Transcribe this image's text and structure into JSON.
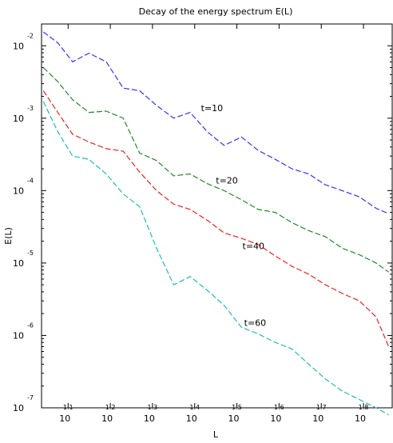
{
  "chart_data": {
    "type": "line",
    "title": "Decay of the energy spectrum E(L)",
    "xlabel": "L",
    "ylabel": "E(L)",
    "xscale": "log",
    "yscale": "log",
    "xlim": [
      10.89,
      74.13
    ],
    "ylim": [
      1e-07,
      0.02
    ],
    "grid": false,
    "legend": "none",
    "x_ticks": [
      {
        "base": "10",
        "exp": "1.1",
        "value": 12.59
      },
      {
        "base": "10",
        "exp": "1.2",
        "value": 15.85
      },
      {
        "base": "10",
        "exp": "1.3",
        "value": 19.95
      },
      {
        "base": "10",
        "exp": "1.4",
        "value": 25.12
      },
      {
        "base": "10",
        "exp": "1.5",
        "value": 31.62
      },
      {
        "base": "10",
        "exp": "1.6",
        "value": 39.81
      },
      {
        "base": "10",
        "exp": "1.7",
        "value": 50.12
      },
      {
        "base": "10",
        "exp": "1.8",
        "value": 63.1
      }
    ],
    "y_ticks": [
      {
        "base": "10",
        "exp": "-2",
        "value": 0.01
      },
      {
        "base": "10",
        "exp": "-3",
        "value": 0.001
      },
      {
        "base": "10",
        "exp": "-4",
        "value": 0.0001
      },
      {
        "base": "10",
        "exp": "-5",
        "value": 1e-05
      },
      {
        "base": "10",
        "exp": "-6",
        "value": 1e-06
      },
      {
        "base": "10",
        "exp": "-7",
        "value": 1e-07
      }
    ],
    "x": [
      11.0,
      11.9,
      12.9,
      14.1,
      15.5,
      17.0,
      18.6,
      20.4,
      22.4,
      24.5,
      26.9,
      29.5,
      32.4,
      35.5,
      39.0,
      42.7,
      46.8,
      51.3,
      56.2,
      61.7,
      67.6,
      72.4
    ],
    "series": [
      {
        "color": "#3333ff",
        "values": [
          0.0155,
          0.011,
          0.006,
          0.0079,
          0.006,
          0.0026,
          0.0024,
          0.0015,
          0.001,
          0.0012,
          0.00065,
          0.00042,
          0.00055,
          0.00036,
          0.00027,
          0.0002,
          0.00017,
          0.00012,
          0.0001,
          8.2e-05,
          5.7e-05,
          4.8e-05
        ]
      },
      {
        "color": "#228822",
        "values": [
          0.005,
          0.0032,
          0.0018,
          0.0012,
          0.00125,
          0.001,
          0.00033,
          0.00026,
          0.00016,
          0.00017,
          0.000125,
          0.0001,
          7.5e-05,
          5.5e-05,
          5e-05,
          3.6e-05,
          2.8e-05,
          2.3e-05,
          1.6e-05,
          1.3e-05,
          1e-05,
          7.5e-06
        ]
      },
      {
        "color": "#ee2222",
        "values": [
          0.0024,
          0.0012,
          0.0006,
          0.00047,
          0.00038,
          0.00035,
          0.00018,
          0.0001,
          6.5e-05,
          5.5e-05,
          3.9e-05,
          2.6e-05,
          2.2e-05,
          1.8e-05,
          1.25e-05,
          9e-06,
          7e-06,
          5e-06,
          3.8e-06,
          3e-06,
          1.8e-06,
          7e-07
        ]
      },
      {
        "color": "#22bbbb",
        "values": [
          0.0017,
          0.00065,
          0.0003,
          0.00027,
          0.00017,
          9e-05,
          6e-05,
          1.6e-05,
          5e-06,
          6.5e-06,
          4.2e-06,
          2.6e-06,
          1.3e-06,
          1.05e-06,
          8e-07,
          6.5e-07,
          4e-07,
          2.5e-07,
          1.7e-07,
          1.3e-07,
          1e-07,
          8e-08
        ]
      }
    ],
    "annotations": [
      {
        "text": "t=10",
        "x": 26.0,
        "y": 0.00125
      },
      {
        "text": "t=20",
        "x": 28.2,
        "y": 0.000125
      },
      {
        "text": "t=40",
        "x": 32.6,
        "y": 1.55e-05
      },
      {
        "text": "t=60",
        "x": 32.9,
        "y": 1.35e-06
      }
    ]
  }
}
